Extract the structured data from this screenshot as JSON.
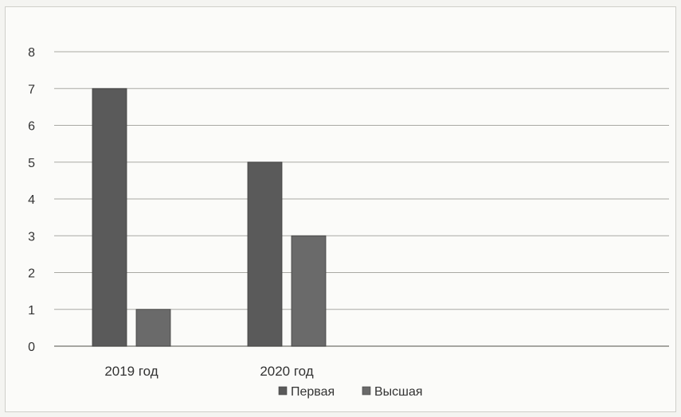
{
  "chart_data": {
    "type": "bar",
    "title": "",
    "xlabel": "",
    "ylabel": "",
    "categories": [
      "2019 год",
      "2020 год"
    ],
    "series": [
      {
        "name": "Первая",
        "values": [
          7,
          5
        ],
        "color": "#5a5a5a"
      },
      {
        "name": "Высшая",
        "values": [
          1,
          3
        ],
        "color": "#6a6a6a"
      }
    ],
    "ylim": [
      0,
      8
    ],
    "yticks": [
      "0",
      "1",
      "2",
      "3",
      "4",
      "5",
      "6",
      "7",
      "8"
    ],
    "grid": true,
    "legend_position": "bottom"
  }
}
